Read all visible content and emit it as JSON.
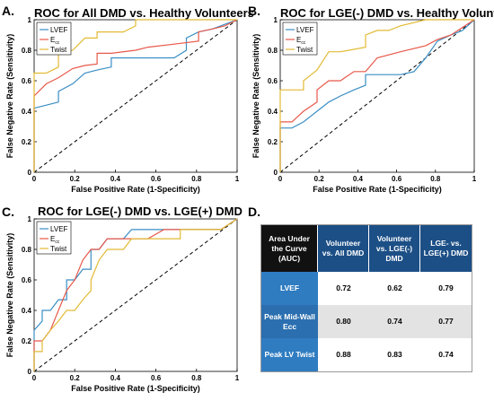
{
  "colors": {
    "lvef": "#3a8ec4",
    "ecc": "#e8584a",
    "twist": "#e2ba35",
    "chance": "#000000"
  },
  "panel_labels": [
    "A.",
    "B.",
    "C.",
    "D."
  ],
  "chart_data": [
    {
      "type": "line",
      "title": "ROC for All DMD vs. Healthy Volunteers",
      "xlabel": "False Positive Rate (1-Specificity)",
      "ylabel": "False Negative Rate (Sensitivity)",
      "xlim": [
        0,
        1
      ],
      "ylim": [
        0,
        1
      ],
      "xticks": [
        "0",
        "0.2",
        "0.4",
        "0.6",
        "0.8",
        "1"
      ],
      "yticks": [
        "0",
        "0.2",
        "0.4",
        "0.6",
        "0.8",
        "1"
      ],
      "legend": {
        "position": "top-left",
        "entries": [
          {
            "text": "LVEF",
            "sub": ""
          },
          {
            "text": "E",
            "sub": "cc"
          },
          {
            "text": "Twist",
            "sub": ""
          }
        ]
      },
      "series": [
        {
          "name": "LVEF",
          "color": "lvef",
          "points": [
            [
              0,
              0
            ],
            [
              0,
              0.42
            ],
            [
              0.06,
              0.44
            ],
            [
              0.12,
              0.46
            ],
            [
              0.12,
              0.53
            ],
            [
              0.19,
              0.58
            ],
            [
              0.25,
              0.65
            ],
            [
              0.31,
              0.67
            ],
            [
              0.38,
              0.69
            ],
            [
              0.38,
              0.75
            ],
            [
              0.44,
              0.75
            ],
            [
              0.5,
              0.75
            ],
            [
              0.56,
              0.75
            ],
            [
              0.69,
              0.75
            ],
            [
              0.75,
              0.8
            ],
            [
              0.75,
              0.88
            ],
            [
              0.81,
              0.92
            ],
            [
              0.88,
              0.94
            ],
            [
              0.94,
              0.97
            ],
            [
              1,
              1
            ]
          ]
        },
        {
          "name": "Ecc",
          "color": "ecc",
          "points": [
            [
              0,
              0
            ],
            [
              0,
              0.5
            ],
            [
              0.06,
              0.58
            ],
            [
              0.12,
              0.62
            ],
            [
              0.19,
              0.68
            ],
            [
              0.25,
              0.7
            ],
            [
              0.31,
              0.71
            ],
            [
              0.31,
              0.78
            ],
            [
              0.38,
              0.78
            ],
            [
              0.5,
              0.8
            ],
            [
              0.56,
              0.82
            ],
            [
              0.69,
              0.84
            ],
            [
              0.81,
              0.86
            ],
            [
              0.81,
              0.92
            ],
            [
              0.88,
              0.94
            ],
            [
              0.94,
              0.96
            ],
            [
              1,
              1
            ]
          ]
        },
        {
          "name": "Twist",
          "color": "twist",
          "points": [
            [
              0,
              0
            ],
            [
              0,
              0.65
            ],
            [
              0.06,
              0.65
            ],
            [
              0.12,
              0.69
            ],
            [
              0.12,
              0.78
            ],
            [
              0.19,
              0.8
            ],
            [
              0.25,
              0.88
            ],
            [
              0.31,
              0.88
            ],
            [
              0.31,
              0.92
            ],
            [
              0.44,
              0.92
            ],
            [
              0.5,
              0.96
            ],
            [
              0.5,
              1
            ],
            [
              0.56,
              1
            ],
            [
              0.62,
              1
            ],
            [
              1,
              1
            ]
          ]
        }
      ]
    },
    {
      "type": "line",
      "title": "ROC for LGE(-) DMD vs. Healthy Volunteers",
      "xlabel": "False Positive Rate (1-Specificity)",
      "ylabel": "False Negative Rate (Sensitivity)",
      "xlim": [
        0,
        1
      ],
      "ylim": [
        0,
        1
      ],
      "xticks": [
        "0",
        "0.2",
        "0.4",
        "0.6",
        "0.8",
        "1"
      ],
      "yticks": [
        "0",
        "0.2",
        "0.4",
        "0.6",
        "0.8",
        "1"
      ],
      "legend": {
        "position": "top-left",
        "entries": [
          {
            "text": "LVEF",
            "sub": ""
          },
          {
            "text": "E",
            "sub": "cc"
          },
          {
            "text": "Twist",
            "sub": ""
          }
        ]
      },
      "series": [
        {
          "name": "LVEF",
          "color": "lvef",
          "points": [
            [
              0,
              0
            ],
            [
              0,
              0.29
            ],
            [
              0.06,
              0.29
            ],
            [
              0.12,
              0.33
            ],
            [
              0.19,
              0.4
            ],
            [
              0.25,
              0.46
            ],
            [
              0.31,
              0.5
            ],
            [
              0.38,
              0.54
            ],
            [
              0.44,
              0.57
            ],
            [
              0.44,
              0.64
            ],
            [
              0.5,
              0.64
            ],
            [
              0.56,
              0.64
            ],
            [
              0.62,
              0.64
            ],
            [
              0.69,
              0.66
            ],
            [
              0.75,
              0.75
            ],
            [
              0.81,
              0.86
            ],
            [
              0.88,
              0.9
            ],
            [
              0.94,
              0.93
            ],
            [
              1,
              1
            ]
          ]
        },
        {
          "name": "Ecc",
          "color": "ecc",
          "points": [
            [
              0,
              0
            ],
            [
              0,
              0.33
            ],
            [
              0.06,
              0.33
            ],
            [
              0.12,
              0.4
            ],
            [
              0.19,
              0.46
            ],
            [
              0.19,
              0.54
            ],
            [
              0.25,
              0.6
            ],
            [
              0.31,
              0.6
            ],
            [
              0.38,
              0.66
            ],
            [
              0.44,
              0.66
            ],
            [
              0.5,
              0.75
            ],
            [
              0.62,
              0.79
            ],
            [
              0.75,
              0.83
            ],
            [
              0.81,
              0.87
            ],
            [
              0.88,
              0.9
            ],
            [
              0.94,
              0.95
            ],
            [
              1,
              1
            ]
          ]
        },
        {
          "name": "Twist",
          "color": "twist",
          "points": [
            [
              0,
              0
            ],
            [
              0,
              0.54
            ],
            [
              0.06,
              0.54
            ],
            [
              0.12,
              0.54
            ],
            [
              0.12,
              0.6
            ],
            [
              0.19,
              0.67
            ],
            [
              0.25,
              0.79
            ],
            [
              0.31,
              0.79
            ],
            [
              0.44,
              0.82
            ],
            [
              0.44,
              0.9
            ],
            [
              0.5,
              0.93
            ],
            [
              0.56,
              0.93
            ],
            [
              0.62,
              0.96
            ],
            [
              0.75,
              1
            ],
            [
              1,
              1
            ]
          ]
        }
      ]
    },
    {
      "type": "line",
      "title": "ROC for LGE(-) DMD vs. LGE(+) DMD",
      "xlabel": "False Positive Rate (1-Specificity)",
      "ylabel": "False Negative Rate (Sensitivity)",
      "xlim": [
        0,
        1
      ],
      "ylim": [
        0,
        1
      ],
      "xticks": [
        "0",
        "0.2",
        "0.4",
        "0.6",
        "0.8",
        "1"
      ],
      "yticks": [
        "0",
        "0.2",
        "0.4",
        "0.6",
        "0.8",
        "1"
      ],
      "legend": {
        "position": "top-left",
        "entries": [
          {
            "text": "LVEF",
            "sub": ""
          },
          {
            "text": "E",
            "sub": "cc"
          },
          {
            "text": "Twist",
            "sub": ""
          }
        ]
      },
      "series": [
        {
          "name": "LVEF",
          "color": "lvef",
          "points": [
            [
              0,
              0
            ],
            [
              0,
              0.27
            ],
            [
              0.04,
              0.33
            ],
            [
              0.04,
              0.4
            ],
            [
              0.08,
              0.4
            ],
            [
              0.12,
              0.47
            ],
            [
              0.16,
              0.47
            ],
            [
              0.16,
              0.6
            ],
            [
              0.2,
              0.6
            ],
            [
              0.24,
              0.67
            ],
            [
              0.28,
              0.67
            ],
            [
              0.28,
              0.8
            ],
            [
              0.32,
              0.8
            ],
            [
              0.36,
              0.87
            ],
            [
              0.44,
              0.87
            ],
            [
              0.48,
              0.93
            ],
            [
              0.52,
              0.93
            ],
            [
              0.8,
              0.93
            ],
            [
              0.92,
              0.93
            ],
            [
              1,
              1
            ]
          ]
        },
        {
          "name": "Ecc",
          "color": "ecc",
          "points": [
            [
              0,
              0
            ],
            [
              0,
              0.2
            ],
            [
              0.04,
              0.2
            ],
            [
              0.08,
              0.27
            ],
            [
              0.12,
              0.4
            ],
            [
              0.16,
              0.53
            ],
            [
              0.2,
              0.6
            ],
            [
              0.24,
              0.73
            ],
            [
              0.28,
              0.8
            ],
            [
              0.32,
              0.8
            ],
            [
              0.36,
              0.87
            ],
            [
              0.48,
              0.87
            ],
            [
              0.56,
              0.87
            ],
            [
              0.64,
              0.93
            ],
            [
              0.76,
              0.93
            ],
            [
              0.8,
              0.93
            ],
            [
              0.92,
              0.93
            ],
            [
              1,
              1
            ]
          ]
        },
        {
          "name": "Twist",
          "color": "twist",
          "points": [
            [
              0,
              0
            ],
            [
              0,
              0.13
            ],
            [
              0.04,
              0.13
            ],
            [
              0.04,
              0.2
            ],
            [
              0.08,
              0.27
            ],
            [
              0.12,
              0.33
            ],
            [
              0.16,
              0.4
            ],
            [
              0.2,
              0.4
            ],
            [
              0.24,
              0.47
            ],
            [
              0.28,
              0.53
            ],
            [
              0.28,
              0.6
            ],
            [
              0.32,
              0.73
            ],
            [
              0.36,
              0.8
            ],
            [
              0.4,
              0.8
            ],
            [
              0.44,
              0.8
            ],
            [
              0.48,
              0.87
            ],
            [
              0.56,
              0.87
            ],
            [
              0.64,
              0.87
            ],
            [
              0.68,
              0.87
            ],
            [
              0.72,
              0.87
            ],
            [
              0.72,
              0.93
            ],
            [
              0.8,
              0.93
            ],
            [
              0.92,
              0.93
            ],
            [
              1,
              1
            ]
          ]
        }
      ]
    }
  ],
  "table": {
    "header": [
      "Area Under the Curve (AUC)",
      "Volunteer vs. All DMD",
      "Volunteer vs. LGE(-) DMD",
      "LGE- vs. LGE(+) DMD"
    ],
    "rows": [
      {
        "label": "LVEF",
        "values": [
          "0.72",
          "0.62",
          "0.79"
        ]
      },
      {
        "label": "Peak Mid-Wall Ecc",
        "values": [
          "0.80",
          "0.74",
          "0.77"
        ]
      },
      {
        "label": "Peak LV Twist",
        "values": [
          "0.88",
          "0.83",
          "0.74"
        ]
      }
    ]
  }
}
